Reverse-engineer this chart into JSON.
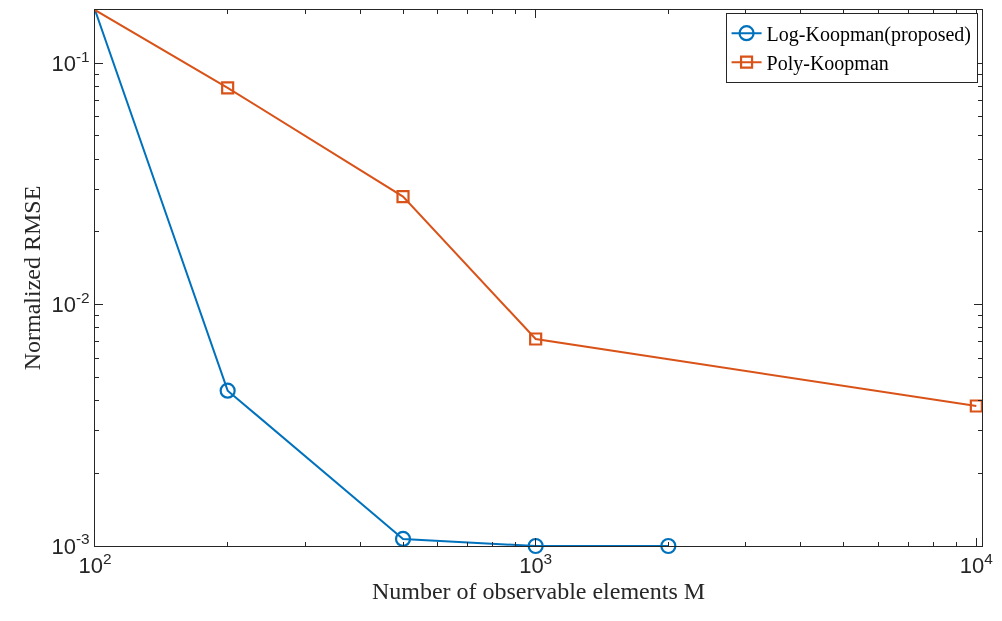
{
  "chart_data": {
    "type": "line",
    "xlabel": "Number of observable elements M",
    "ylabel": "Normalized RMSE",
    "log": "xy",
    "xlim": [
      100,
      10300
    ],
    "ylim": [
      0.001,
      0.166
    ],
    "xticks": [
      {
        "value": 100,
        "label": "10$^{2}$"
      },
      {
        "value": 1000,
        "label": "10$^{3}$"
      },
      {
        "value": 10000,
        "label": "10$^{4}$"
      }
    ],
    "yticks": [
      {
        "value": 0.001,
        "label": "10$^{-3}$"
      },
      {
        "value": 0.01,
        "label": "10$^{-2}$"
      },
      {
        "value": 0.1,
        "label": "10$^{-1}$"
      }
    ],
    "legend": "top right",
    "line_style": "solid",
    "series": [
      {
        "name": "Log-Koopman(proposed)",
        "color": "#0072bd",
        "marker": "circle",
        "x": [
          100,
          200,
          500,
          1000,
          2000
        ],
        "values": [
          0.166,
          0.0044,
          0.00107,
          0.001,
          0.001
        ]
      },
      {
        "name": "Poly-Koopman",
        "color": "#d95319",
        "marker": "square",
        "x": [
          100,
          200,
          500,
          1000,
          10000
        ],
        "values": [
          0.166,
          0.079,
          0.028,
          0.0072,
          0.0038
        ]
      }
    ]
  }
}
